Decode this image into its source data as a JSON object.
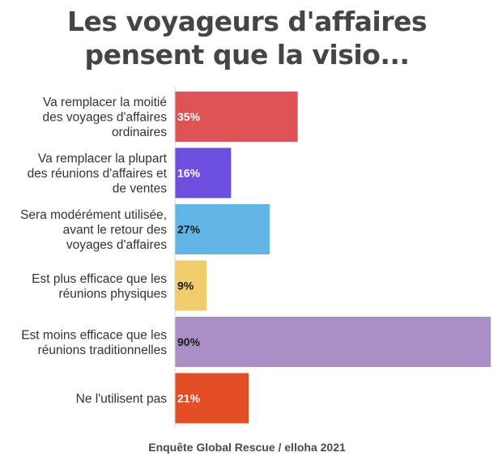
{
  "title": [
    "Les voyageurs d'affaires",
    "pensent que la visio..."
  ],
  "source": "Enquête Global Rescue / elloha 2021",
  "chart_data": {
    "type": "bar",
    "orientation": "horizontal",
    "xlim": [
      0,
      90
    ],
    "grid": false,
    "categories": [
      [
        "Va remplacer la moitié",
        "des voyages d'affaires",
        "ordinaires"
      ],
      [
        "Va remplacer la plupart",
        "des réunions d'affaires et",
        "de ventes"
      ],
      [
        "Sera modérément utilisée,",
        "avant le retour des",
        "voyages d'affaires"
      ],
      [
        "Est plus efficace que les",
        "réunions physiques"
      ],
      [
        "Est moins efficace que les",
        "réunions traditionnelles"
      ],
      [
        "Ne l'utilisent pas"
      ]
    ],
    "values": [
      35,
      16,
      27,
      9,
      90,
      21
    ],
    "data_labels": [
      "35%",
      "16%",
      "27%",
      "9%",
      "90%",
      "21%"
    ],
    "colors": [
      "#df5256",
      "#6c4fde",
      "#62b6e6",
      "#f2cd6c",
      "#aa8fc7",
      "#e44e24"
    ],
    "label_colors": [
      "#ffffff",
      "#ffffff",
      "#1a1a1a",
      "#1a1a1a",
      "#1a1a1a",
      "#ffffff"
    ]
  }
}
